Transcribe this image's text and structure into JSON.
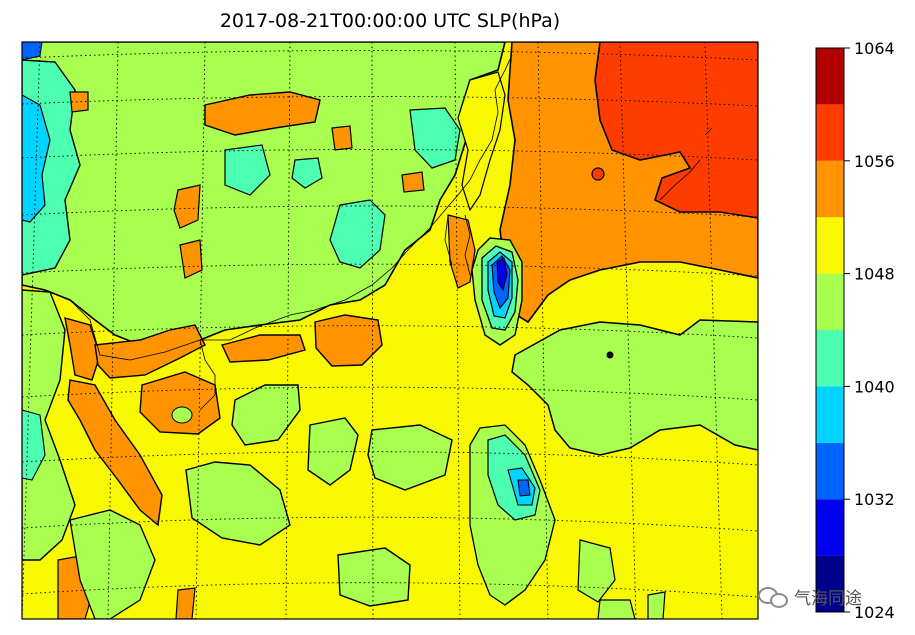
{
  "title": "2017-08-21T00:00:00 UTC SLP(hPa)",
  "colorbar": {
    "ticks": [
      "1064",
      "1056",
      "1048",
      "1040",
      "1032",
      "1024"
    ],
    "levels": [
      {
        "from": 1024,
        "to": 1028,
        "color": "#00008c"
      },
      {
        "from": 1028,
        "to": 1032,
        "color": "#0000f0"
      },
      {
        "from": 1032,
        "to": 1036,
        "color": "#0064ff"
      },
      {
        "from": 1036,
        "to": 1040,
        "color": "#00d4ff"
      },
      {
        "from": 1040,
        "to": 1044,
        "color": "#4dffb0"
      },
      {
        "from": 1044,
        "to": 1048,
        "color": "#a8ff50"
      },
      {
        "from": 1048,
        "to": 1052,
        "color": "#f8f800"
      },
      {
        "from": 1052,
        "to": 1056,
        "color": "#ff9400"
      },
      {
        "from": 1056,
        "to": 1060,
        "color": "#ff3c00"
      },
      {
        "from": 1060,
        "to": 1064,
        "color": "#b20000"
      }
    ]
  },
  "chart_data": {
    "type": "heatmap",
    "title": "2017-08-21T00:00:00 UTC SLP(hPa)",
    "variable": "SLP",
    "unit": "hPa",
    "range": [
      1024,
      1064
    ],
    "contour_interval": 4,
    "colormap": "jet",
    "grid": true
  },
  "watermark": {
    "text": "气海同途",
    "icon": "wechat-icon"
  }
}
